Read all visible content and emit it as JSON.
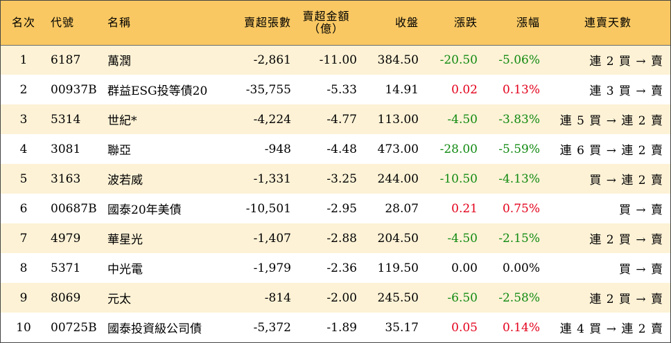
{
  "chart_data": {
    "type": "table",
    "columns": [
      "名次",
      "代號",
      "名稱",
      "賣超張數",
      "賣超金額\n（億）",
      "收盤",
      "漲跌",
      "漲幅",
      "連賣天數"
    ],
    "rows": [
      {
        "rank": "1",
        "code": "6187",
        "name": "萬潤",
        "sheets": "-2,861",
        "amount": "-11.00",
        "close": "384.50",
        "change": "-20.50",
        "pct": "-5.06%",
        "trend": "down",
        "days": "連 2 買 → 賣"
      },
      {
        "rank": "2",
        "code": "00937B",
        "name": "群益ESG投等債20",
        "sheets": "-35,755",
        "amount": "-5.33",
        "close": "14.91",
        "change": "0.02",
        "pct": "0.13%",
        "trend": "up",
        "days": "連 3 買 → 賣"
      },
      {
        "rank": "3",
        "code": "5314",
        "name": "世紀*",
        "sheets": "-4,224",
        "amount": "-4.77",
        "close": "113.00",
        "change": "-4.50",
        "pct": "-3.83%",
        "trend": "down",
        "days": "連 5 買 → 連 2 賣"
      },
      {
        "rank": "4",
        "code": "3081",
        "name": "聯亞",
        "sheets": "-948",
        "amount": "-4.48",
        "close": "473.00",
        "change": "-28.00",
        "pct": "-5.59%",
        "trend": "down",
        "days": "連 6 買 → 連 2 賣"
      },
      {
        "rank": "5",
        "code": "3163",
        "name": "波若威",
        "sheets": "-1,331",
        "amount": "-3.25",
        "close": "244.00",
        "change": "-10.50",
        "pct": "-4.13%",
        "trend": "down",
        "days": "買 → 連 2 賣"
      },
      {
        "rank": "6",
        "code": "00687B",
        "name": "國泰20年美債",
        "sheets": "-10,501",
        "amount": "-2.95",
        "close": "28.07",
        "change": "0.21",
        "pct": "0.75%",
        "trend": "up",
        "days": "買 → 賣"
      },
      {
        "rank": "7",
        "code": "4979",
        "name": "華星光",
        "sheets": "-1,407",
        "amount": "-2.88",
        "close": "204.50",
        "change": "-4.50",
        "pct": "-2.15%",
        "trend": "down",
        "days": "連 2 買 → 賣"
      },
      {
        "rank": "8",
        "code": "5371",
        "name": "中光電",
        "sheets": "-1,979",
        "amount": "-2.36",
        "close": "119.50",
        "change": "0.00",
        "pct": "0.00%",
        "trend": "flat",
        "days": "買 → 賣"
      },
      {
        "rank": "9",
        "code": "8069",
        "name": "元太",
        "sheets": "-814",
        "amount": "-2.00",
        "close": "245.50",
        "change": "-6.50",
        "pct": "-2.58%",
        "trend": "down",
        "days": "連 2 買 → 賣"
      },
      {
        "rank": "10",
        "code": "00725B",
        "name": "國泰投資級公司債",
        "sheets": "-5,372",
        "amount": "-1.89",
        "close": "35.17",
        "change": "0.05",
        "pct": "0.14%",
        "trend": "up",
        "days": "連 4 買 → 連 2 賣"
      }
    ]
  },
  "colors": {
    "header_bg": "#f9c862",
    "odd_row_bg": "#fdf2d6",
    "even_row_bg": "#ffffff",
    "up": "#e3001b",
    "down": "#118a11",
    "flat": "#000000"
  }
}
